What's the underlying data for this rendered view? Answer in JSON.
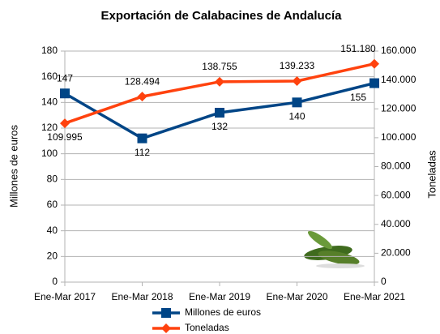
{
  "chart_data": {
    "type": "line",
    "title": "Exportación de Calabacines de Andalucía",
    "categories": [
      "Ene-Mar 2017",
      "Ene-Mar 2018",
      "Ene-Mar 2019",
      "Ene-Mar 2020",
      "Ene-Mar 2021"
    ],
    "y_label": "Millones de euros",
    "y2_label": "Toneladas",
    "ylim": [
      0,
      180
    ],
    "yticks": [
      0,
      20,
      40,
      60,
      80,
      100,
      120,
      140,
      160,
      180
    ],
    "y2lim": [
      0,
      160000
    ],
    "y2ticks": [
      0,
      {
        "value": 20000,
        "label": "20.000"
      },
      {
        "value": 40000,
        "label": "40.000"
      },
      {
        "value": 60000,
        "label": "60.000"
      },
      {
        "value": 80000,
        "label": "80.000"
      },
      {
        "value": 100000,
        "label": "100.000"
      },
      {
        "value": 120000,
        "label": "120.000"
      },
      {
        "value": 140000,
        "label": "140.000"
      },
      {
        "value": 160000,
        "label": "160.000"
      }
    ],
    "grid": true,
    "legend": "bottom",
    "series": [
      {
        "name": "Millones de euros",
        "color": "#004586",
        "marker": "square",
        "values": [
          147,
          112,
          132,
          140,
          155
        ]
      },
      {
        "name": "Toneladas",
        "color": "#ff420e",
        "marker": "diamond",
        "axis": "y2",
        "values": [
          109995,
          128494,
          138755,
          139233,
          151180
        ],
        "value_labels": [
          "109.995",
          "128.494",
          "138.755",
          "139.233",
          "151.180"
        ]
      }
    ]
  }
}
